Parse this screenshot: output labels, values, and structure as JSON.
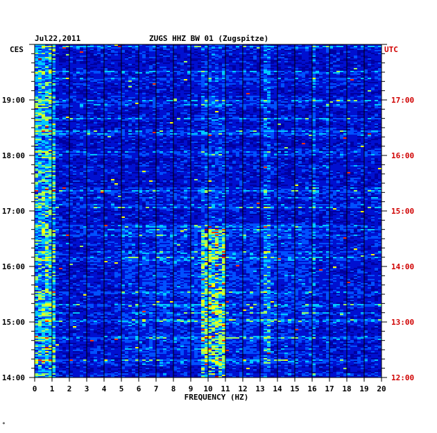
{
  "chart_data": {
    "type": "heatmap",
    "date": "Jul22,2011",
    "title": "ZUGS HHZ BW 01 (Zugspitze)",
    "left_timezone": "CES",
    "right_timezone": "UTC",
    "xlabel": "FREQUENCY (HZ)",
    "xlim": [
      0,
      20
    ],
    "x_ticks": [
      "0",
      "1",
      "2",
      "3",
      "4",
      "5",
      "6",
      "7",
      "8",
      "9",
      "10",
      "11",
      "12",
      "13",
      "14",
      "15",
      "16",
      "17",
      "18",
      "19",
      "20"
    ],
    "left_time_ticks": [
      "19:00",
      "18:00",
      "17:00",
      "16:00",
      "15:00",
      "14:00"
    ],
    "right_time_ticks": [
      "17:00",
      "16:00",
      "15:00",
      "14:00",
      "13:00",
      "12:00"
    ],
    "time_range_ces_hours": [
      14.0,
      19.95
    ],
    "colormap": [
      "#0000a0",
      "#0010d0",
      "#0050ff",
      "#00c8ff",
      "#a0ff60",
      "#ffff00",
      "#ff3000",
      "#c00000"
    ],
    "grid": true,
    "energy_features": [
      {
        "band_hz": [
          0.0,
          1.2
        ],
        "level": "moderate",
        "note": "low-frequency noise throughout"
      },
      {
        "band_hz": [
          9.6,
          11.0
        ],
        "level": "high",
        "note": "strong band 14:00–16:40"
      },
      {
        "band_hz": [
          13.3,
          13.7
        ],
        "level": "moderate"
      },
      {
        "band_hz": [
          16.0,
          16.2
        ],
        "level": "moderate"
      },
      {
        "band_hz": [
          16.8,
          17.0
        ],
        "level": "low"
      }
    ]
  },
  "footnote": "*"
}
